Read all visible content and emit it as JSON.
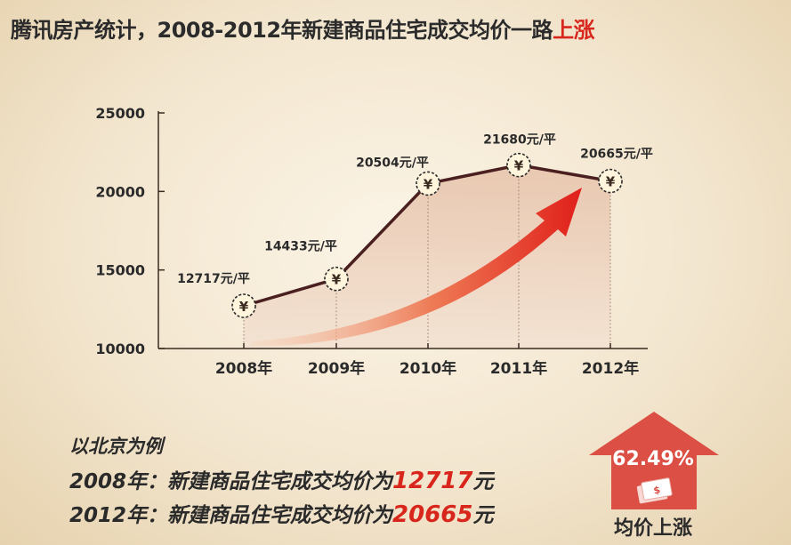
{
  "title": {
    "main": "腾讯房产统计，2008-2012年新建商品住宅成交均价一路",
    "highlight": "上涨"
  },
  "chart_data": {
    "type": "line",
    "categories": [
      "2008年",
      "2009年",
      "2010年",
      "2011年",
      "2012年"
    ],
    "values": [
      12717,
      14433,
      20504,
      21680,
      20665
    ],
    "point_labels": [
      "12717元/平",
      "14433元/平",
      "20504元/平",
      "21680元/平",
      "20665元/平"
    ],
    "marker_symbol": "¥",
    "yticks": [
      "10000",
      "15000",
      "20000",
      "25000"
    ],
    "ylim": [
      10000,
      25000
    ],
    "grid": false,
    "colors": {
      "line": "#4a1f1f",
      "area": "#edd0bb",
      "arrow": "#e8321f",
      "marker_fill": "#fff5dc"
    }
  },
  "notes": {
    "heading": "以北京为例",
    "line1": {
      "prefix": "2008年：新建商品住宅成交均价为",
      "value": "12717",
      "unit": "元"
    },
    "line2": {
      "prefix": "2012年：新建商品住宅成交均价为",
      "value": "20665",
      "unit": "元"
    }
  },
  "badge": {
    "percent": "62.49%",
    "label": "均价上涨",
    "icon": "money-icon",
    "color": "#dc4f45"
  }
}
